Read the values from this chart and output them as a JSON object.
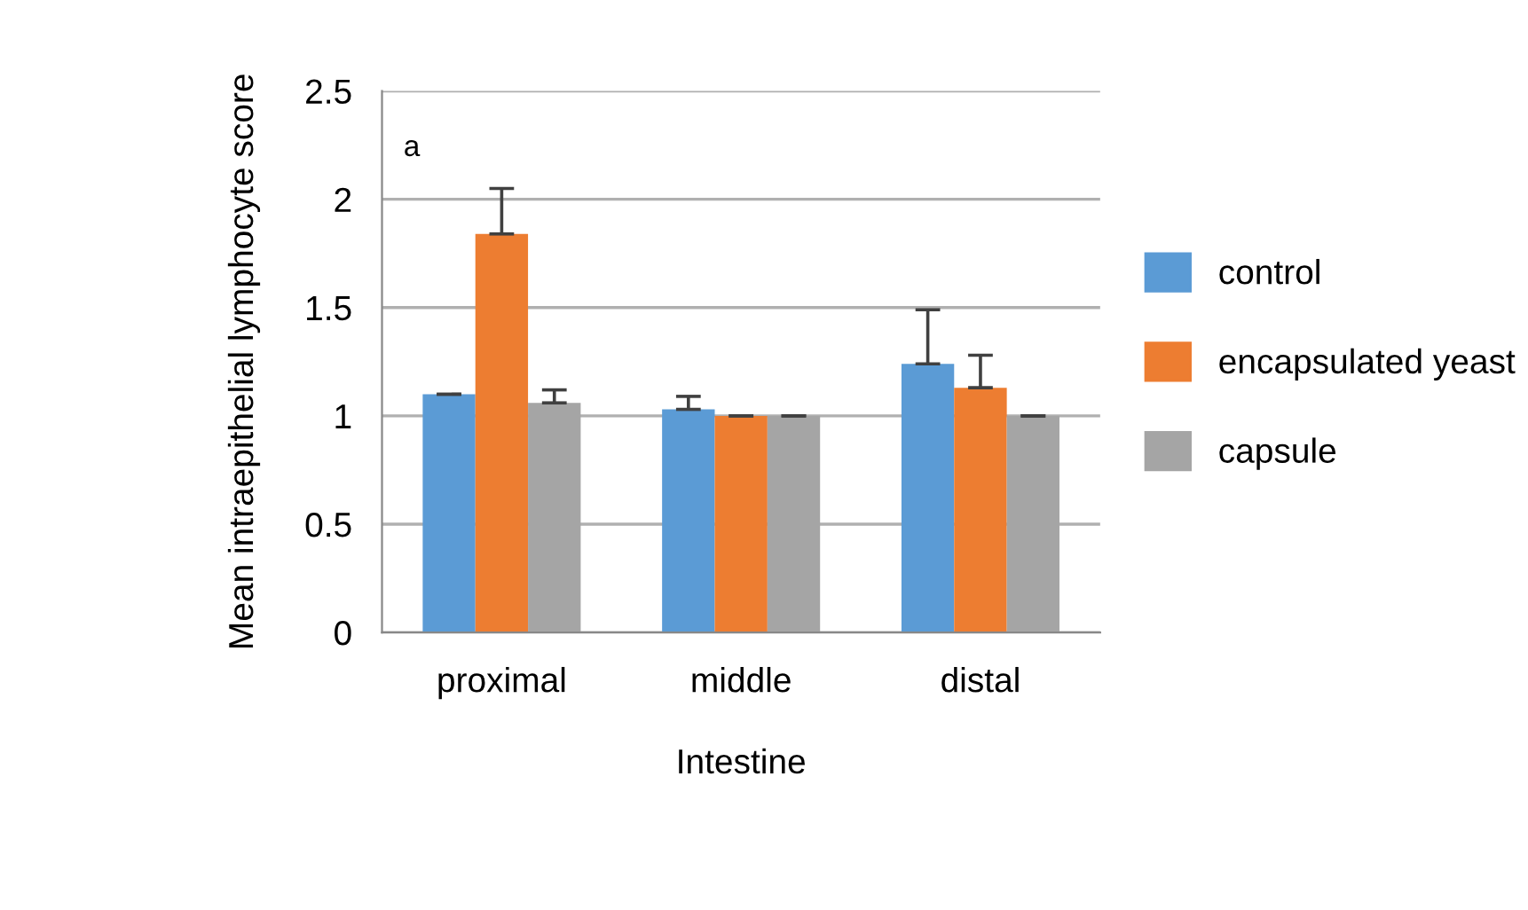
{
  "chart_data": {
    "type": "bar",
    "xlabel": "Intestine",
    "ylabel": "Mean intraepithelial lymphocyte score",
    "categories": [
      "proximal",
      "middle",
      "distal"
    ],
    "series": [
      {
        "name": "control",
        "color": "#5b9bd5",
        "values": [
          1.1,
          1.03,
          1.24
        ],
        "errors": [
          [
            1.1,
            1.1
          ],
          [
            1.03,
            1.09
          ],
          [
            1.24,
            1.49
          ]
        ]
      },
      {
        "name": "encapsulated yeast",
        "color": "#ed7d31",
        "values": [
          1.84,
          1.0,
          1.13
        ],
        "errors": [
          [
            1.84,
            2.05
          ],
          [
            1.0,
            1.0
          ],
          [
            1.13,
            1.28
          ]
        ]
      },
      {
        "name": "capsule",
        "color": "#a5a5a5",
        "values": [
          1.06,
          1.0,
          1.0
        ],
        "errors": [
          [
            1.06,
            1.12
          ],
          [
            1.0,
            1.0
          ],
          [
            1.0,
            1.0
          ]
        ]
      }
    ],
    "ylim": [
      0,
      2.5
    ],
    "yticks": [
      0,
      0.5,
      1,
      1.5,
      2,
      2.5
    ],
    "grid": "y",
    "legend": "right",
    "annotations": [
      "a"
    ]
  }
}
